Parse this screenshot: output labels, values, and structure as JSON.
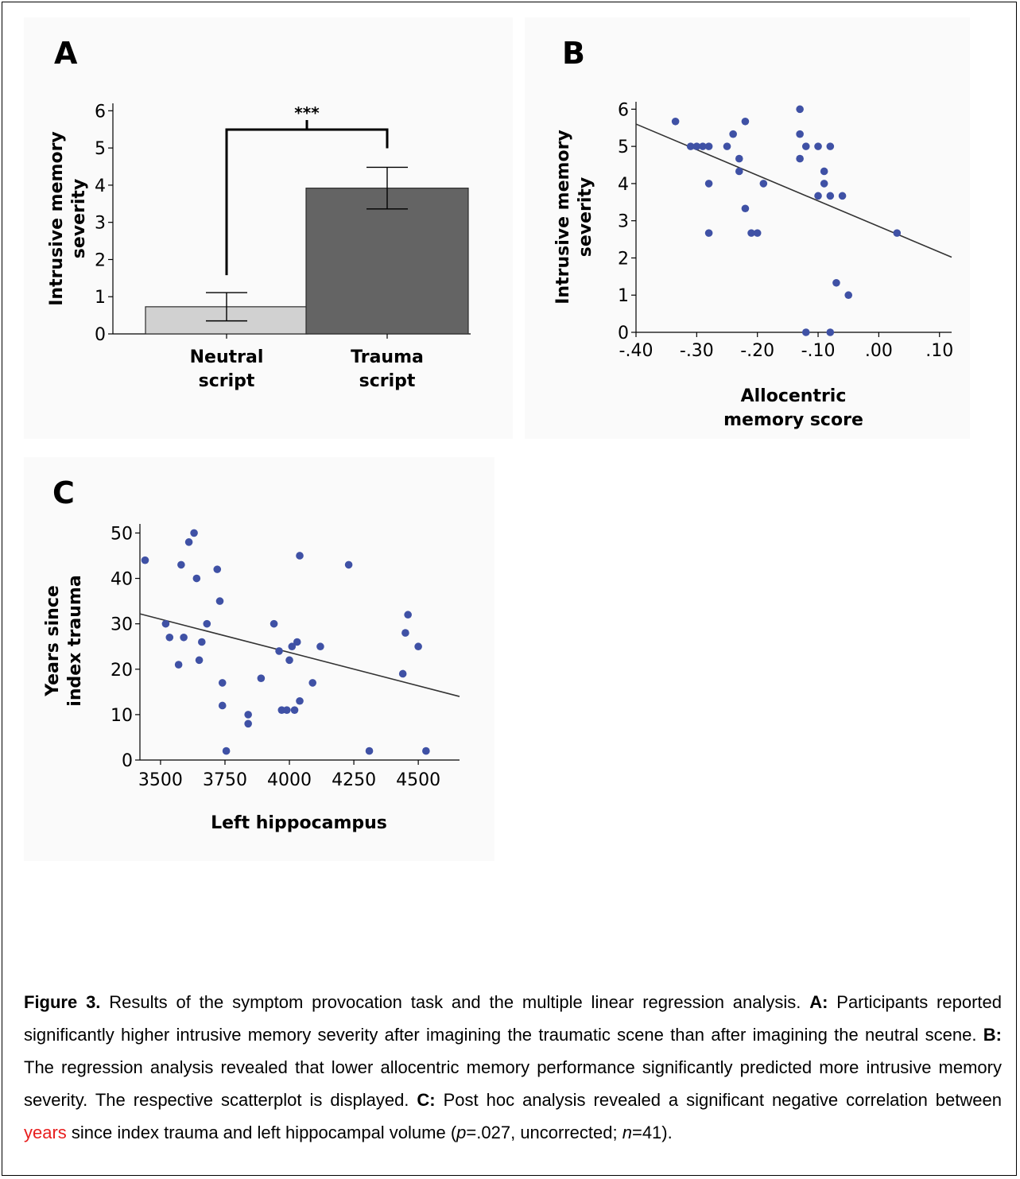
{
  "figure": {
    "panel_labels": [
      "A",
      "B",
      "C"
    ]
  },
  "chart_data": [
    {
      "panel": "A",
      "type": "bar",
      "categories": [
        "Neutral\nscript",
        "Trauma\nscript"
      ],
      "category_lines": [
        [
          "Neutral",
          "script"
        ],
        [
          "Trauma",
          "script"
        ]
      ],
      "values": [
        0.73,
        3.92
      ],
      "error": [
        0.38,
        0.56
      ],
      "bar_colors": [
        "#d1d1d1",
        "#646464"
      ],
      "ylabel": "Intrusive memory\nseverity",
      "ylabel_lines": [
        "Intrusive memory",
        "severity"
      ],
      "ylim": [
        0,
        6.2
      ],
      "yticks": [
        0,
        1,
        2,
        3,
        4,
        5,
        6
      ],
      "significance": "***",
      "grid": false
    },
    {
      "panel": "B",
      "type": "scatter",
      "xlabel": "Allocentric\nmemory score",
      "xlabel_lines": [
        "Allocentric",
        "memory score"
      ],
      "ylabel": "Intrusive memory\nseverity",
      "ylabel_lines": [
        "Intrusive memory",
        "severity"
      ],
      "xlim": [
        -0.4,
        0.12
      ],
      "ylim": [
        0,
        6.2
      ],
      "xticks": [
        -0.4,
        -0.3,
        -0.2,
        -0.1,
        0.0,
        0.1
      ],
      "xtick_labels": [
        "-.40",
        "-.30",
        "-.20",
        "-.10",
        ".00",
        ".10"
      ],
      "yticks": [
        0,
        1,
        2,
        3,
        4,
        5,
        6
      ],
      "point_color": "#3f51a5",
      "points": [
        [
          -0.335,
          5.67
        ],
        [
          -0.31,
          5.0
        ],
        [
          -0.3,
          5.0
        ],
        [
          -0.29,
          5.0
        ],
        [
          -0.28,
          5.0
        ],
        [
          -0.28,
          4.0
        ],
        [
          -0.28,
          2.67
        ],
        [
          -0.25,
          5.0
        ],
        [
          -0.24,
          5.33
        ],
        [
          -0.23,
          4.67
        ],
        [
          -0.23,
          4.33
        ],
        [
          -0.22,
          5.67
        ],
        [
          -0.22,
          3.33
        ],
        [
          -0.21,
          2.67
        ],
        [
          -0.2,
          2.67
        ],
        [
          -0.19,
          4.0
        ],
        [
          -0.13,
          6.0
        ],
        [
          -0.13,
          5.33
        ],
        [
          -0.13,
          4.67
        ],
        [
          -0.12,
          5.0
        ],
        [
          -0.1,
          5.0
        ],
        [
          -0.1,
          3.67
        ],
        [
          -0.09,
          4.33
        ],
        [
          -0.09,
          4.0
        ],
        [
          -0.08,
          5.0
        ],
        [
          -0.08,
          3.67
        ],
        [
          -0.06,
          3.67
        ],
        [
          -0.08,
          0.0
        ],
        [
          -0.12,
          0.0
        ],
        [
          -0.07,
          1.33
        ],
        [
          -0.05,
          1.0
        ],
        [
          0.03,
          2.67
        ]
      ],
      "fit_line": [
        [
          -0.4,
          5.6
        ],
        [
          0.12,
          2.02
        ]
      ],
      "grid": false
    },
    {
      "panel": "C",
      "type": "scatter",
      "xlabel": "Left hippocampus",
      "ylabel": "Years since\nindex trauma",
      "ylabel_lines": [
        "Years since",
        "index trauma"
      ],
      "xlim": [
        3420,
        4660
      ],
      "ylim": [
        0,
        52
      ],
      "xticks": [
        3500,
        3750,
        4000,
        4250,
        4500
      ],
      "yticks": [
        0,
        10,
        20,
        30,
        40,
        50
      ],
      "point_color": "#3f51a5",
      "points": [
        [
          3440,
          44
        ],
        [
          3520,
          30
        ],
        [
          3535,
          27
        ],
        [
          3570,
          21
        ],
        [
          3580,
          43
        ],
        [
          3590,
          27
        ],
        [
          3610,
          48
        ],
        [
          3630,
          50
        ],
        [
          3640,
          40
        ],
        [
          3650,
          22
        ],
        [
          3660,
          26
        ],
        [
          3680,
          30
        ],
        [
          3720,
          42
        ],
        [
          3730,
          35
        ],
        [
          3740,
          17
        ],
        [
          3740,
          12
        ],
        [
          3755,
          2
        ],
        [
          3840,
          10
        ],
        [
          3840,
          8
        ],
        [
          3890,
          18
        ],
        [
          3940,
          30
        ],
        [
          3960,
          24
        ],
        [
          3970,
          11
        ],
        [
          3990,
          11
        ],
        [
          4000,
          22
        ],
        [
          4010,
          25
        ],
        [
          4020,
          11
        ],
        [
          4030,
          26
        ],
        [
          4040,
          45
        ],
        [
          4040,
          13
        ],
        [
          4090,
          17
        ],
        [
          4120,
          25
        ],
        [
          4230,
          43
        ],
        [
          4310,
          2
        ],
        [
          4440,
          19
        ],
        [
          4450,
          28
        ],
        [
          4460,
          32
        ],
        [
          4500,
          25
        ],
        [
          4530,
          2
        ]
      ],
      "fit_line": [
        [
          3420,
          32.2
        ],
        [
          4660,
          14.0
        ]
      ],
      "grid": false
    }
  ],
  "caption": {
    "figure_label": "Figure 3.",
    "intro": " Results of the symptom provocation task and the multiple linear regression analysis. ",
    "a_label": "A:",
    "a_text": " Participants reported significantly higher intrusive memory severity after imagining the traumatic scene than after imagining the neutral scene. ",
    "b_label": "B:",
    "b_text": " The regression analysis revealed that lower allocentric memory performance significantly predicted more intrusive memory severity. The respective scatterplot is displayed. ",
    "c_label": "C:",
    "c_text_1": " Post hoc analysis revealed a significant negative correlation between ",
    "c_highlight": "years",
    "c_text_2": " since index trauma and left hippocampal volume (",
    "p_sym": "p",
    "p_text": "=.027, uncorrected; ",
    "n_sym": "n",
    "n_text": "=41)."
  }
}
